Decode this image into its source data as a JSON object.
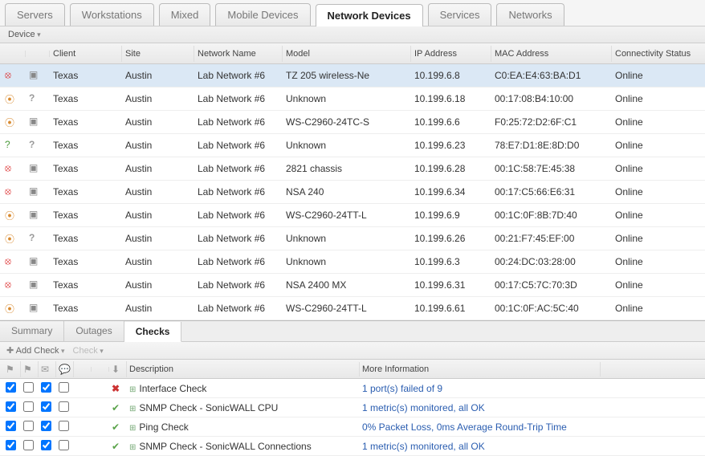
{
  "topTabs": [
    {
      "label": "Servers",
      "active": false
    },
    {
      "label": "Workstations",
      "active": false
    },
    {
      "label": "Mixed",
      "active": false
    },
    {
      "label": "Mobile Devices",
      "active": false
    },
    {
      "label": "Network Devices",
      "active": true
    },
    {
      "label": "Services",
      "active": false
    },
    {
      "label": "Networks",
      "active": false
    }
  ],
  "deviceMenuLabel": "Device",
  "gridColumns": [
    "",
    "",
    "Client",
    "Site",
    "Network Name",
    "Model",
    "IP Address",
    "MAC Address",
    "Connectivity Status"
  ],
  "devices": [
    {
      "sel": true,
      "i1": "red",
      "i2": "cube",
      "client": "Texas",
      "site": "Austin",
      "net": "Lab Network #6",
      "model": "TZ 205 wireless-Ne",
      "ip": "10.199.6.8",
      "mac": "C0:EA:E4:63:BA:D1",
      "status": "Online"
    },
    {
      "sel": false,
      "i1": "orange",
      "i2": "q",
      "client": "Texas",
      "site": "Austin",
      "net": "Lab Network #6",
      "model": "Unknown",
      "ip": "10.199.6.18",
      "mac": "00:17:08:B4:10:00",
      "status": "Online"
    },
    {
      "sel": false,
      "i1": "orange",
      "i2": "cube",
      "client": "Texas",
      "site": "Austin",
      "net": "Lab Network #6",
      "model": "WS-C2960-24TC-S",
      "ip": "10.199.6.6",
      "mac": "F0:25:72:D2:6F:C1",
      "status": "Online"
    },
    {
      "sel": false,
      "i1": "green",
      "i2": "q",
      "client": "Texas",
      "site": "Austin",
      "net": "Lab Network #6",
      "model": "Unknown",
      "ip": "10.199.6.23",
      "mac": "78:E7:D1:8E:8D:D0",
      "status": "Online"
    },
    {
      "sel": false,
      "i1": "red",
      "i2": "cube",
      "client": "Texas",
      "site": "Austin",
      "net": "Lab Network #6",
      "model": "2821 chassis",
      "ip": "10.199.6.28",
      "mac": "00:1C:58:7E:45:38",
      "status": "Online"
    },
    {
      "sel": false,
      "i1": "red",
      "i2": "cube",
      "client": "Texas",
      "site": "Austin",
      "net": "Lab Network #6",
      "model": "NSA 240",
      "ip": "10.199.6.34",
      "mac": "00:17:C5:66:E6:31",
      "status": "Online"
    },
    {
      "sel": false,
      "i1": "orange",
      "i2": "cube",
      "client": "Texas",
      "site": "Austin",
      "net": "Lab Network #6",
      "model": "WS-C2960-24TT-L",
      "ip": "10.199.6.9",
      "mac": "00:1C:0F:8B:7D:40",
      "status": "Online"
    },
    {
      "sel": false,
      "i1": "orange",
      "i2": "q",
      "client": "Texas",
      "site": "Austin",
      "net": "Lab Network #6",
      "model": "Unknown",
      "ip": "10.199.6.26",
      "mac": "00:21:F7:45:EF:00",
      "status": "Online"
    },
    {
      "sel": false,
      "i1": "red",
      "i2": "cube",
      "client": "Texas",
      "site": "Austin",
      "net": "Lab Network #6",
      "model": "Unknown",
      "ip": "10.199.6.3",
      "mac": "00:24:DC:03:28:00",
      "status": "Online"
    },
    {
      "sel": false,
      "i1": "red",
      "i2": "cube",
      "client": "Texas",
      "site": "Austin",
      "net": "Lab Network #6",
      "model": "NSA 2400 MX",
      "ip": "10.199.6.31",
      "mac": "00:17:C5:7C:70:3D",
      "status": "Online"
    },
    {
      "sel": false,
      "i1": "orange",
      "i2": "cube",
      "client": "Texas",
      "site": "Austin",
      "net": "Lab Network #6",
      "model": "WS-C2960-24TT-L",
      "ip": "10.199.6.61",
      "mac": "00:1C:0F:AC:5C:40",
      "status": "Online"
    }
  ],
  "subTabs": [
    {
      "label": "Summary",
      "active": false
    },
    {
      "label": "Outages",
      "active": false
    },
    {
      "label": "Checks",
      "active": true
    }
  ],
  "checksToolbar": {
    "addCheckLabel": "Add Check",
    "checkLabel": "Check"
  },
  "checksColumns": {
    "desc": "Description",
    "info": "More Information"
  },
  "checksHeaderIcons": [
    "⚑",
    "⚑",
    "✉",
    "💬",
    "",
    "",
    "⬇"
  ],
  "checks": [
    {
      "cb": [
        true,
        false,
        true,
        false
      ],
      "status": "x",
      "desc": "Interface Check",
      "info": "1 port(s) failed of 9"
    },
    {
      "cb": [
        true,
        false,
        true,
        false
      ],
      "status": "ok",
      "desc": "SNMP Check - SonicWALL CPU",
      "info": "1 metric(s) monitored, all OK"
    },
    {
      "cb": [
        true,
        false,
        true,
        false
      ],
      "status": "ok",
      "desc": "Ping Check",
      "info": "0% Packet Loss, 0ms Average Round-Trip Time"
    },
    {
      "cb": [
        true,
        false,
        true,
        false
      ],
      "status": "ok",
      "desc": "SNMP Check - SonicWALL Connections",
      "info": "1 metric(s) monitored, all OK"
    }
  ]
}
